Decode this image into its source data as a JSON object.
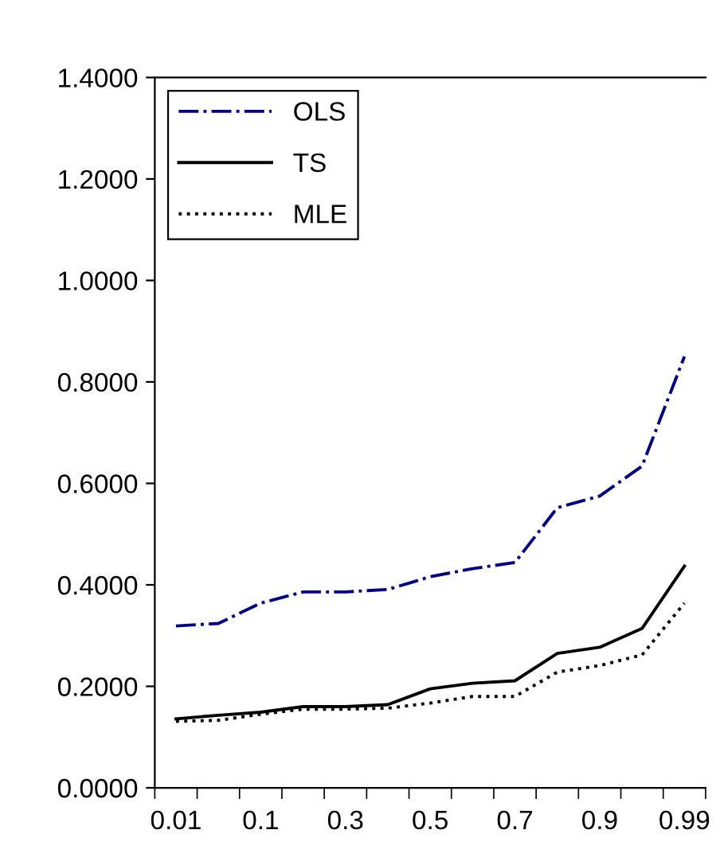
{
  "chart_data": {
    "type": "line",
    "categories": [
      "0.01",
      null,
      "0.1",
      null,
      "0.3",
      null,
      "0.5",
      null,
      "0.7",
      null,
      "0.9",
      null,
      "0.99"
    ],
    "series": [
      {
        "name": "OLS",
        "color": "#000080",
        "line_style": "dashdot",
        "values": [
          0.319,
          0.324,
          0.364,
          0.386,
          0.386,
          0.391,
          0.416,
          0.432,
          0.444,
          0.552,
          0.575,
          0.634,
          0.85
        ]
      },
      {
        "name": "TS",
        "color": "#000000",
        "line_style": "solid",
        "values": [
          0.136,
          0.143,
          0.149,
          0.16,
          0.16,
          0.164,
          0.195,
          0.206,
          0.211,
          0.265,
          0.277,
          0.314,
          0.437
        ]
      },
      {
        "name": "MLE",
        "color": "#000000",
        "line_style": "dotted",
        "values": [
          0.131,
          0.133,
          0.145,
          0.155,
          0.155,
          0.157,
          0.167,
          0.18,
          0.18,
          0.228,
          0.241,
          0.262,
          0.364
        ]
      }
    ],
    "ylim": [
      0,
      1.4
    ],
    "yticks": [
      {
        "value": 0,
        "label": "0.0000"
      },
      {
        "value": 0.2,
        "label": "0.2000"
      },
      {
        "value": 0.4,
        "label": "0.4000"
      },
      {
        "value": 0.6,
        "label": "0.6000"
      },
      {
        "value": 0.8,
        "label": "0.8000"
      },
      {
        "value": 1.0,
        "label": "1.0000"
      },
      {
        "value": 1.2,
        "label": "1.2000"
      },
      {
        "value": 1.4,
        "label": "1.4000"
      }
    ],
    "grid": false,
    "legend": "top left",
    "marker": "none"
  }
}
